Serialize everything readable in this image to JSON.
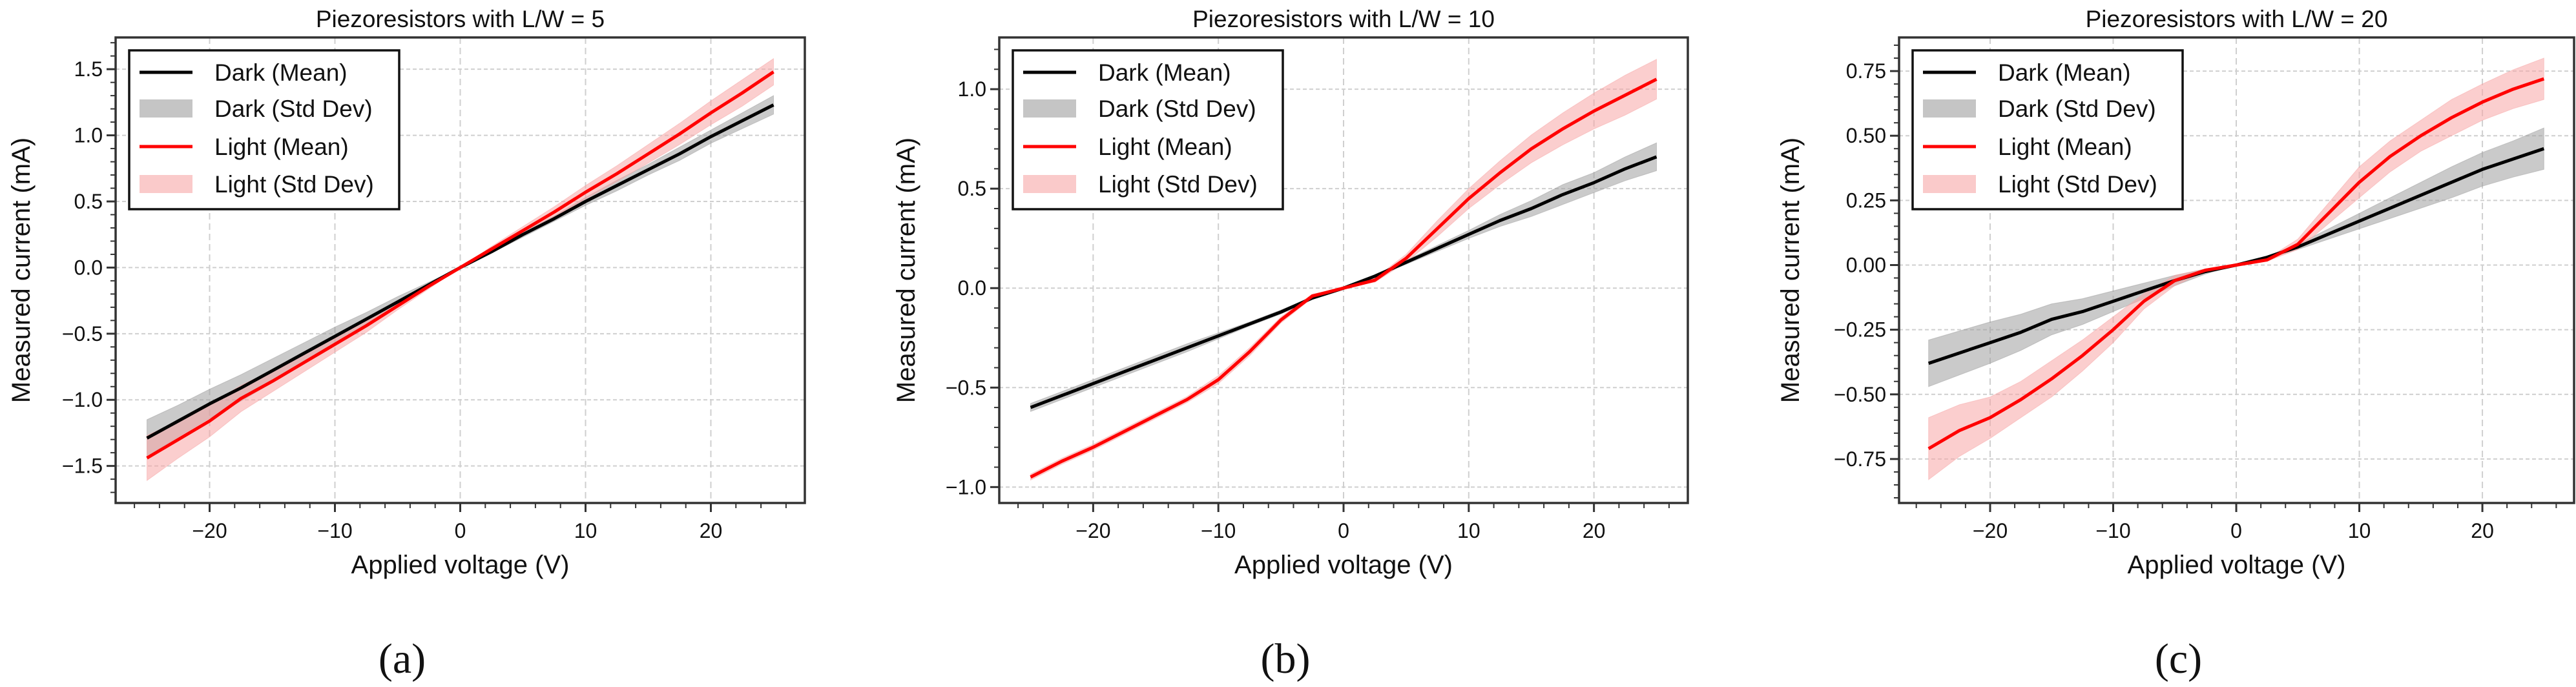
{
  "colors": {
    "dark": "#000000",
    "dark_band": "#9e9e9e",
    "light": "#ff0000",
    "light_band": "#f7a6a6",
    "grid": "#cfcfcf"
  },
  "chart_data": [
    {
      "type": "line",
      "panel_label": "(a)",
      "title": "Piezoresistors with L/W = 5",
      "xlabel": "Applied voltage (V)",
      "ylabel": "Measured current (mA)",
      "xlim": [
        -27.5,
        27.5
      ],
      "ylim": [
        -1.78,
        1.74
      ],
      "xticks": [
        -20,
        -10,
        0,
        10,
        20
      ],
      "xtick_labels": [
        "−20",
        "−10",
        "0",
        "10",
        "20"
      ],
      "yticks": [
        -1.5,
        -1.0,
        -0.5,
        0.0,
        0.5,
        1.0,
        1.5
      ],
      "ytick_labels": [
        "−1.5",
        "−1.0",
        "−0.5",
        "0.0",
        "0.5",
        "1.0",
        "1.5"
      ],
      "yminor_step": 0.1,
      "grid": true,
      "legend": {
        "placement": "upper-left",
        "entries": [
          "Dark (Mean)",
          "Dark (Std Dev)",
          "Light (Mean)",
          "Light (Std Dev)"
        ]
      },
      "x": [
        -25,
        -22.5,
        -20,
        -17.5,
        -15,
        -12.5,
        -10,
        -7.5,
        -5,
        -2.5,
        0,
        2.5,
        5,
        7.5,
        10,
        12.5,
        15,
        17.5,
        20,
        22.5,
        25
      ],
      "series": [
        {
          "name": "Dark",
          "mean": [
            -1.29,
            -1.16,
            -1.03,
            -0.91,
            -0.78,
            -0.65,
            -0.52,
            -0.39,
            -0.26,
            -0.13,
            0,
            0.12,
            0.25,
            0.37,
            0.5,
            0.62,
            0.74,
            0.86,
            0.99,
            1.11,
            1.23
          ],
          "std": [
            0.14,
            0.12,
            0.11,
            0.1,
            0.09,
            0.08,
            0.07,
            0.05,
            0.04,
            0.02,
            0,
            0.01,
            0.02,
            0.02,
            0.03,
            0.04,
            0.04,
            0.05,
            0.05,
            0.06,
            0.07
          ]
        },
        {
          "name": "Light",
          "mean": [
            -1.44,
            -1.3,
            -1.16,
            -0.99,
            -0.86,
            -0.72,
            -0.58,
            -0.44,
            -0.29,
            -0.14,
            0,
            0.14,
            0.28,
            0.42,
            0.57,
            0.71,
            0.86,
            1.01,
            1.17,
            1.32,
            1.48
          ],
          "std": [
            0.17,
            0.14,
            0.12,
            0.1,
            0.08,
            0.07,
            0.06,
            0.05,
            0.03,
            0.02,
            0,
            0.02,
            0.03,
            0.04,
            0.05,
            0.06,
            0.07,
            0.08,
            0.09,
            0.1,
            0.1
          ]
        }
      ]
    },
    {
      "type": "line",
      "panel_label": "(b)",
      "title": "Piezoresistors with L/W = 10",
      "xlabel": "Applied voltage (V)",
      "ylabel": "Measured current (mA)",
      "xlim": [
        -27.5,
        27.5
      ],
      "ylim": [
        -1.08,
        1.26
      ],
      "xticks": [
        -20,
        -10,
        0,
        10,
        20
      ],
      "xtick_labels": [
        "−20",
        "−10",
        "0",
        "10",
        "20"
      ],
      "yticks": [
        -1.0,
        -0.5,
        0.0,
        0.5,
        1.0
      ],
      "ytick_labels": [
        "−1.0",
        "−0.5",
        "0.0",
        "0.5",
        "1.0"
      ],
      "yminor_step": 0.1,
      "grid": true,
      "legend": {
        "placement": "upper-left",
        "entries": [
          "Dark (Mean)",
          "Dark (Std Dev)",
          "Light (Mean)",
          "Light (Std Dev)"
        ]
      },
      "x": [
        -25,
        -22.5,
        -20,
        -17.5,
        -15,
        -12.5,
        -10,
        -7.5,
        -5,
        -2.5,
        0,
        2.5,
        5,
        7.5,
        10,
        12.5,
        15,
        17.5,
        20,
        22.5,
        25
      ],
      "series": [
        {
          "name": "Dark",
          "mean": [
            -0.6,
            -0.54,
            -0.48,
            -0.42,
            -0.36,
            -0.3,
            -0.24,
            -0.18,
            -0.12,
            -0.05,
            0,
            0.06,
            0.13,
            0.2,
            0.27,
            0.34,
            0.4,
            0.47,
            0.53,
            0.6,
            0.66
          ],
          "std": [
            0.02,
            0.02,
            0.02,
            0.02,
            0.02,
            0.02,
            0.015,
            0.01,
            0.01,
            0.005,
            0,
            0.005,
            0.01,
            0.015,
            0.02,
            0.03,
            0.04,
            0.05,
            0.05,
            0.06,
            0.07
          ]
        },
        {
          "name": "Light",
          "mean": [
            -0.95,
            -0.87,
            -0.8,
            -0.72,
            -0.64,
            -0.56,
            -0.46,
            -0.32,
            -0.16,
            -0.04,
            0,
            0.04,
            0.15,
            0.3,
            0.45,
            0.58,
            0.7,
            0.8,
            0.89,
            0.97,
            1.05
          ],
          "std": [
            0.015,
            0.015,
            0.015,
            0.015,
            0.015,
            0.015,
            0.02,
            0.02,
            0.015,
            0.01,
            0,
            0.01,
            0.02,
            0.04,
            0.05,
            0.06,
            0.07,
            0.08,
            0.09,
            0.1,
            0.1
          ]
        }
      ]
    },
    {
      "type": "line",
      "panel_label": "(c)",
      "title": "Piezoresistors with L/W = 20",
      "xlabel": "Applied voltage (V)",
      "ylabel": "Measured current (mA)",
      "xlim": [
        -27.4,
        27.45
      ],
      "ylim": [
        -0.92,
        0.88
      ],
      "xticks": [
        -20,
        -10,
        0,
        10,
        20
      ],
      "xtick_labels": [
        "−20",
        "−10",
        "0",
        "10",
        "20"
      ],
      "yticks": [
        -0.75,
        -0.5,
        -0.25,
        0.0,
        0.25,
        0.5,
        0.75
      ],
      "ytick_labels": [
        "−0.75",
        "−0.50",
        "−0.25",
        "0.00",
        "0.25",
        "0.50",
        "0.75"
      ],
      "yminor_step": 0.05,
      "grid": true,
      "legend": {
        "placement": "upper-left",
        "entries": [
          "Dark (Mean)",
          "Dark (Std Dev)",
          "Light (Mean)",
          "Light (Std Dev)"
        ]
      },
      "x": [
        -25,
        -22.5,
        -20,
        -17.5,
        -15,
        -12.5,
        -10,
        -7.5,
        -5,
        -2.5,
        0,
        2.5,
        5,
        7.5,
        10,
        12.5,
        15,
        17.5,
        20,
        22.5,
        25
      ],
      "series": [
        {
          "name": "Dark",
          "mean": [
            -0.38,
            -0.34,
            -0.3,
            -0.26,
            -0.21,
            -0.18,
            -0.14,
            -0.1,
            -0.06,
            -0.025,
            0,
            0.03,
            0.07,
            0.12,
            0.17,
            0.22,
            0.27,
            0.32,
            0.37,
            0.41,
            0.45
          ],
          "std": [
            0.09,
            0.085,
            0.08,
            0.07,
            0.06,
            0.05,
            0.04,
            0.03,
            0.02,
            0.01,
            0,
            0.005,
            0.01,
            0.02,
            0.03,
            0.04,
            0.05,
            0.06,
            0.065,
            0.07,
            0.08
          ]
        },
        {
          "name": "Light",
          "mean": [
            -0.71,
            -0.64,
            -0.59,
            -0.52,
            -0.44,
            -0.35,
            -0.25,
            -0.14,
            -0.06,
            -0.02,
            0,
            0.02,
            0.08,
            0.2,
            0.32,
            0.42,
            0.5,
            0.57,
            0.63,
            0.68,
            0.72
          ],
          "std": [
            0.12,
            0.1,
            0.08,
            0.07,
            0.07,
            0.06,
            0.05,
            0.03,
            0.02,
            0.005,
            0,
            0.005,
            0.02,
            0.04,
            0.06,
            0.06,
            0.06,
            0.07,
            0.07,
            0.075,
            0.08
          ]
        }
      ]
    }
  ]
}
